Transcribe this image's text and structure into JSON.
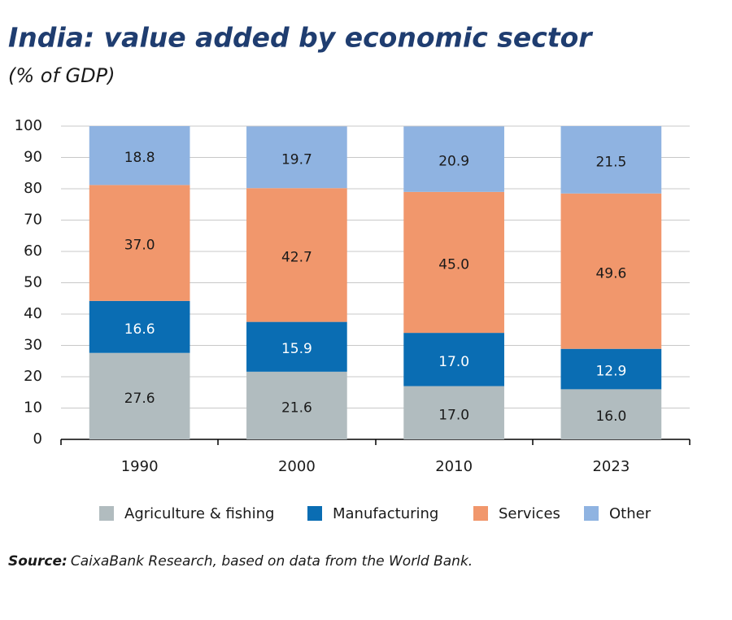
{
  "chart_data": {
    "type": "stacked_bar",
    "title": "India: value added by economic sector",
    "subtitle": "(% of GDP)",
    "categories": [
      "1990",
      "2000",
      "2010",
      "2023"
    ],
    "series": [
      {
        "name": "Agriculture & fishing",
        "color": "#b1bcbf",
        "values": [
          27.6,
          21.6,
          17,
          16
        ],
        "value_labels": [
          "27.6",
          "21.6",
          "17.0",
          "16.0"
        ]
      },
      {
        "name": "Manufacturing",
        "color": "#0a6db3",
        "values": [
          16.6,
          15.9,
          17,
          12.9
        ],
        "value_labels": [
          "16.6",
          "15.9",
          "17.0",
          "12.9"
        ]
      },
      {
        "name": "Services",
        "color": "#f1976c",
        "values": [
          37,
          42.7,
          45,
          49.6
        ],
        "value_labels": [
          "37.0",
          "42.7",
          "45.0",
          "49.6"
        ]
      },
      {
        "name": "Other",
        "color": "#8fb3e1",
        "values": [
          18.8,
          19.7,
          20.9,
          21.5
        ],
        "value_labels": [
          "18.8",
          "19.7",
          "20.9",
          "21.5"
        ]
      }
    ],
    "ylim": [
      0,
      100
    ],
    "yticks": [
      0,
      10,
      20,
      30,
      40,
      50,
      60,
      70,
      80,
      90,
      100
    ],
    "grid": true,
    "legend": "bottom",
    "source_label": "Source:",
    "source": "CaixaBank Research, based on data from the World Bank."
  }
}
